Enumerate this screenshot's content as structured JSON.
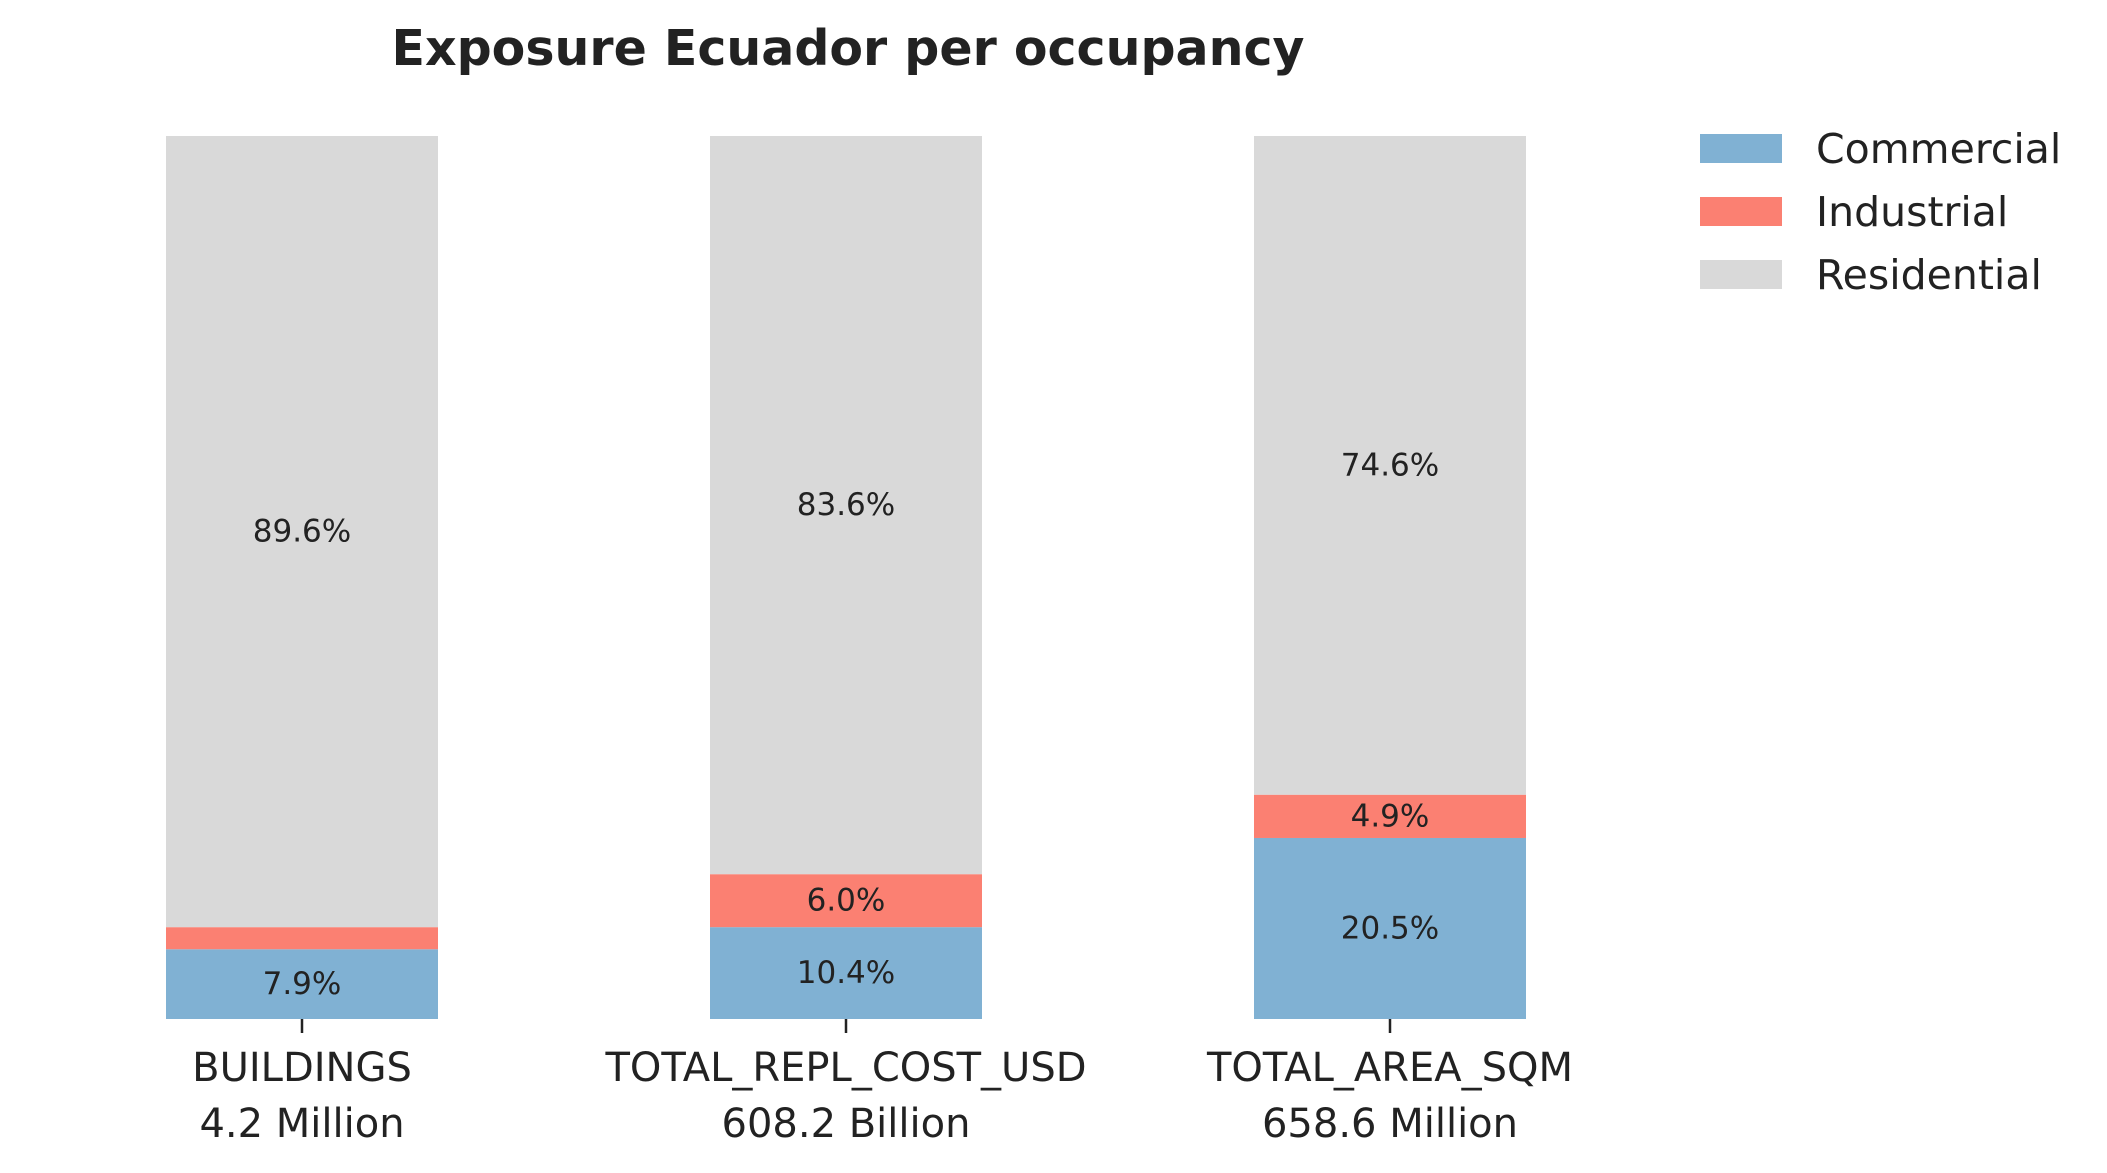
{
  "chart_data": {
    "type": "bar",
    "stacked": true,
    "percent": true,
    "title": "Exposure Ecuador per occupancy",
    "categories": [
      "BUILDINGS",
      "TOTAL_REPL_COST_USD",
      "TOTAL_AREA_SQM"
    ],
    "category_totals": [
      "4.2 Million",
      "608.2 Billion",
      "658.6 Million"
    ],
    "series": [
      {
        "name": "Commercial",
        "color": "#80b1d3",
        "values": [
          7.9,
          10.4,
          20.5
        ],
        "labels": [
          "7.9%",
          "10.4%",
          "20.5%"
        ]
      },
      {
        "name": "Industrial",
        "color": "#fb8072",
        "values": [
          2.5,
          6.0,
          4.9
        ],
        "labels": [
          "",
          "6.0%",
          "4.9%"
        ]
      },
      {
        "name": "Residential",
        "color": "#d9d9d9",
        "values": [
          89.6,
          83.6,
          74.6
        ],
        "labels": [
          "89.6%",
          "83.6%",
          "74.6%"
        ]
      }
    ],
    "ylim": [
      0,
      100
    ],
    "legend_position": "top-right",
    "grid": false
  }
}
